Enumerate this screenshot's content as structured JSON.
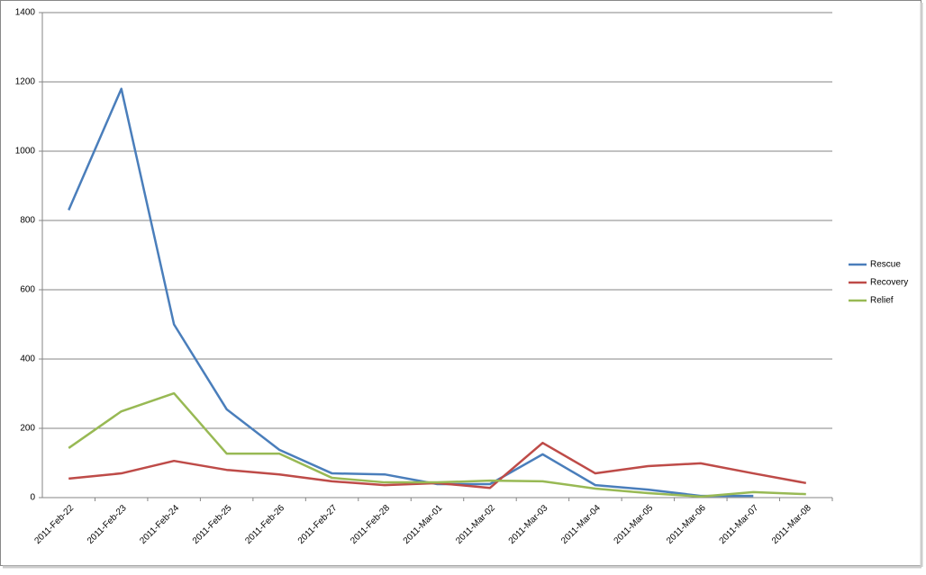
{
  "chart_data": {
    "type": "line",
    "categories": [
      "2011-Feb-22",
      "2011-Feb-23",
      "2011-Feb-24",
      "2011-Feb-25",
      "2011-Feb-26",
      "2011-Feb-27",
      "2011-Feb-28",
      "2011-Mar-01",
      "2011-Mar-02",
      "2011-Mar-03",
      "2011-Mar-04",
      "2011-Mar-05",
      "2011-Mar-06",
      "2011-Mar-07",
      "2011-Mar-08"
    ],
    "series": [
      {
        "name": "Rescue",
        "color": "#4a7ebb",
        "values": [
          830,
          1180,
          500,
          255,
          138,
          70,
          67,
          39,
          39,
          125,
          36,
          23,
          5,
          5,
          null
        ]
      },
      {
        "name": "Recovery",
        "color": "#be4b48",
        "values": [
          55,
          70,
          106,
          80,
          67,
          47,
          36,
          42,
          28,
          158,
          70,
          91,
          99,
          70,
          42
        ]
      },
      {
        "name": "Relief",
        "color": "#98b954",
        "values": [
          143,
          249,
          301,
          127,
          127,
          57,
          44,
          44,
          49,
          47,
          26,
          13,
          3,
          16,
          10
        ]
      }
    ],
    "ylim": [
      0,
      1400
    ],
    "yticks": [
      0,
      200,
      400,
      600,
      800,
      1000,
      1200,
      1400
    ],
    "grid": true,
    "legend": "right"
  }
}
